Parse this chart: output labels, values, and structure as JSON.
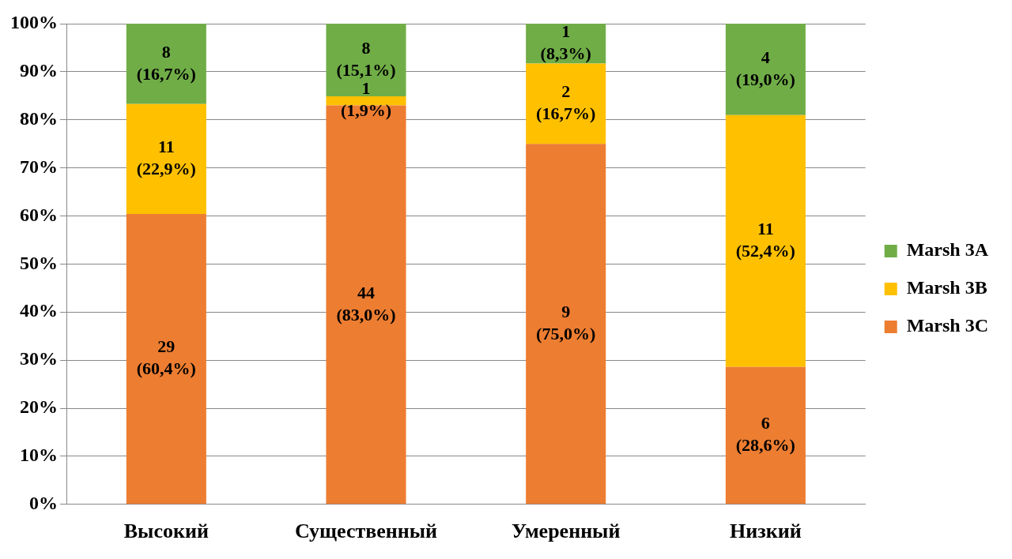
{
  "chart_data": {
    "type": "bar",
    "stacked": true,
    "categories": [
      "Высокий",
      "Существенный",
      "Умеренный",
      "Низкий"
    ],
    "series": [
      {
        "name": "Marsh 3C",
        "color": "#ed7d31",
        "values": [
          60.4,
          83.0,
          75.0,
          28.6
        ],
        "value_labels": [
          "29\n(60,4%)",
          "44\n(83,0%)",
          "9\n(75,0%)",
          "6\n(28,6%)"
        ]
      },
      {
        "name": "Marsh 3B",
        "color": "#ffc000",
        "values": [
          22.9,
          1.9,
          16.7,
          52.4
        ],
        "value_labels": [
          "11\n(22,9%)",
          "1\n(1,9%)",
          "2\n(16,7%)",
          "11\n(52,4%)"
        ]
      },
      {
        "name": "Marsh 3A",
        "color": "#70ad47",
        "values": [
          16.7,
          15.1,
          8.3,
          19.0
        ],
        "value_labels": [
          "8\n(16,7%)",
          "8\n(15,1%)",
          "1\n(8,3%)",
          "4\n(19,0%)"
        ]
      }
    ],
    "ylim": [
      0,
      100
    ],
    "yticks": [
      {
        "value": 0,
        "label": "0%"
      },
      {
        "value": 10,
        "label": "10%"
      },
      {
        "value": 20,
        "label": "20%"
      },
      {
        "value": 30,
        "label": "30%"
      },
      {
        "value": 40,
        "label": "40%"
      },
      {
        "value": 50,
        "label": "50%"
      },
      {
        "value": 60,
        "label": "60%"
      },
      {
        "value": 70,
        "label": "70%"
      },
      {
        "value": 80,
        "label": "80%"
      },
      {
        "value": 90,
        "label": "90%"
      },
      {
        "value": 100,
        "label": "100%"
      }
    ],
    "grid": "y",
    "legend": "right"
  }
}
